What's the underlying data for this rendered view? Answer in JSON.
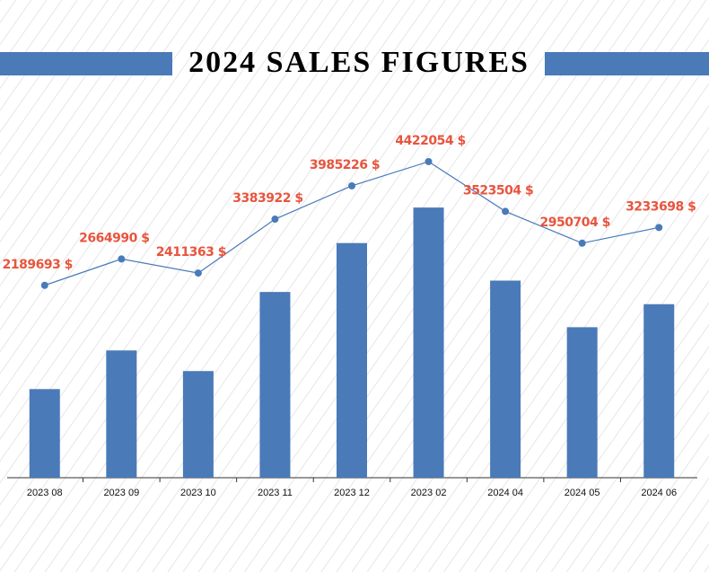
{
  "chart_data": {
    "type": "bar-line",
    "title": "2024 SALES FIGURES",
    "categories": [
      "2023 08",
      "2023 09",
      "2023 10",
      "2023 11",
      "2023 12",
      "2023 02",
      "2024 04",
      "2024 05",
      "2024 06"
    ],
    "values": [
      2189693,
      2664990,
      2411363,
      3383922,
      3985226,
      4422054,
      3523504,
      2950704,
      3233698
    ],
    "value_labels": [
      "2189693 $",
      "2664990 $",
      "2411363 $",
      "3383922 $",
      "3985226 $",
      "4422054 $",
      "3523504 $",
      "2950704 $",
      "3233698 $"
    ],
    "color": "#4a7ab8",
    "label_color": "#e8553e",
    "ylim": [
      1100000,
      4600000
    ]
  }
}
